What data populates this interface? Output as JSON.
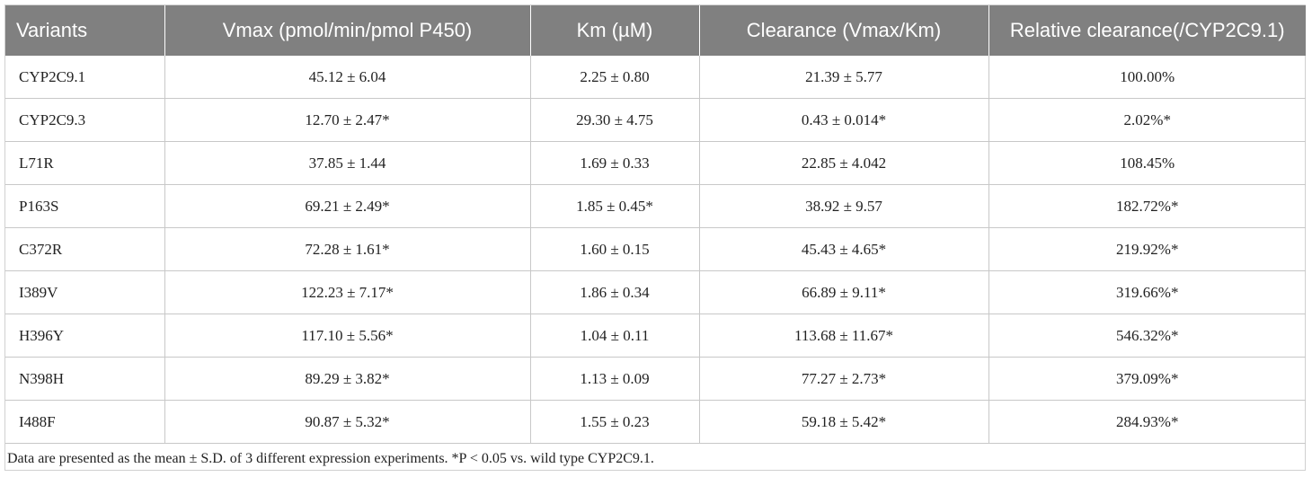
{
  "table": {
    "header": [
      "Variants",
      "Vmax (pmol/min/pmol P450)",
      "Km (µM)",
      "Clearance (Vmax/Km)",
      "Relative clearance(/CYP2C9.1)"
    ],
    "rows": [
      [
        "CYP2C9.1",
        "45.12 ± 6.04",
        "2.25 ± 0.80",
        "21.39 ± 5.77",
        "100.00%"
      ],
      [
        "CYP2C9.3",
        "12.70 ± 2.47*",
        "29.30 ± 4.75",
        "0.43 ± 0.014*",
        "2.02%*"
      ],
      [
        "L71R",
        "37.85 ± 1.44",
        "1.69 ± 0.33",
        "22.85 ± 4.042",
        "108.45%"
      ],
      [
        "P163S",
        "69.21 ± 2.49*",
        "1.85 ± 0.45*",
        "38.92 ± 9.57",
        "182.72%*"
      ],
      [
        "C372R",
        "72.28 ± 1.61*",
        "1.60 ± 0.15",
        "45.43 ± 4.65*",
        "219.92%*"
      ],
      [
        "I389V",
        "122.23 ± 7.17*",
        "1.86 ± 0.34",
        "66.89 ± 9.11*",
        "319.66%*"
      ],
      [
        "H396Y",
        "117.10 ± 5.56*",
        "1.04 ± 0.11",
        "113.68 ± 11.67*",
        "546.32%*"
      ],
      [
        "N398H",
        "89.29 ± 3.82*",
        "1.13 ± 0.09",
        "77.27 ± 2.73*",
        "379.09%*"
      ],
      [
        "I488F",
        "90.87 ± 5.32*",
        "1.55 ± 0.23",
        "59.18 ± 5.42*",
        "284.93%*"
      ]
    ],
    "footnote": "Data are presented as the mean ± S.D. of 3 different expression experiments. *P < 0.05 vs. wild type CYP2C9.1."
  }
}
